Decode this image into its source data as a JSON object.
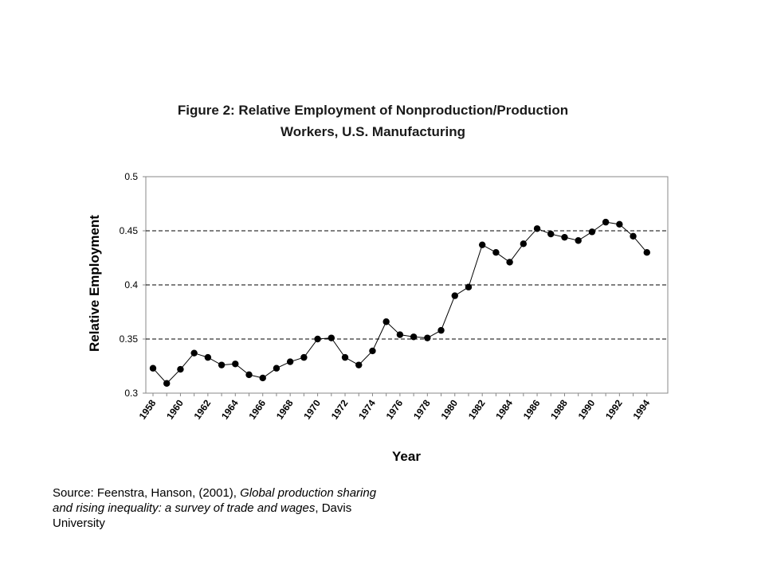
{
  "chart_data": {
    "type": "line",
    "title_line1": "Figure 2: Relative Employment of Nonproduction/Production",
    "title_line2": "Workers, U.S. Manufacturing",
    "xlabel": "Year",
    "ylabel": "Relative Employment",
    "ylim": [
      0.3,
      0.5
    ],
    "xlim": [
      1958,
      1995
    ],
    "yticks": [
      "0.3",
      "0.35",
      "0.4",
      "0.45",
      "0.5"
    ],
    "ytick_values": [
      0.3,
      0.35,
      0.4,
      0.45,
      0.5
    ],
    "xtick_labels": [
      "1958",
      "1960",
      "1962",
      "1964",
      "1966",
      "1968",
      "1970",
      "1972",
      "1974",
      "1976",
      "1978",
      "1980",
      "1982",
      "1984",
      "1986",
      "1988",
      "1990",
      "1992",
      "1994"
    ],
    "grid": "horizontal dashed",
    "series": [
      {
        "x": [
          1958,
          1959,
          1960,
          1961,
          1962,
          1963,
          1964,
          1965,
          1966,
          1967,
          1968,
          1969,
          1970,
          1971,
          1972,
          1973,
          1974,
          1975,
          1976,
          1977,
          1978,
          1979,
          1980,
          1981,
          1982,
          1983,
          1984,
          1985,
          1986,
          1987,
          1988,
          1989,
          1990,
          1991,
          1992,
          1993,
          1994
        ],
        "values": [
          0.323,
          0.309,
          0.322,
          0.337,
          0.333,
          0.326,
          0.327,
          0.317,
          0.314,
          0.323,
          0.329,
          0.333,
          0.35,
          0.351,
          0.333,
          0.326,
          0.339,
          0.366,
          0.354,
          0.352,
          0.351,
          0.358,
          0.39,
          0.398,
          0.437,
          0.43,
          0.421,
          0.438,
          0.452,
          0.447,
          0.444,
          0.441,
          0.449,
          0.458,
          0.456,
          0.445,
          0.43
        ]
      }
    ]
  },
  "source": {
    "prefix": "Source: Feenstra, Hanson, (2001), ",
    "title_italic": "Global production sharing and rising inequality: a survey of trade and wages",
    "suffix": ", Davis University"
  }
}
